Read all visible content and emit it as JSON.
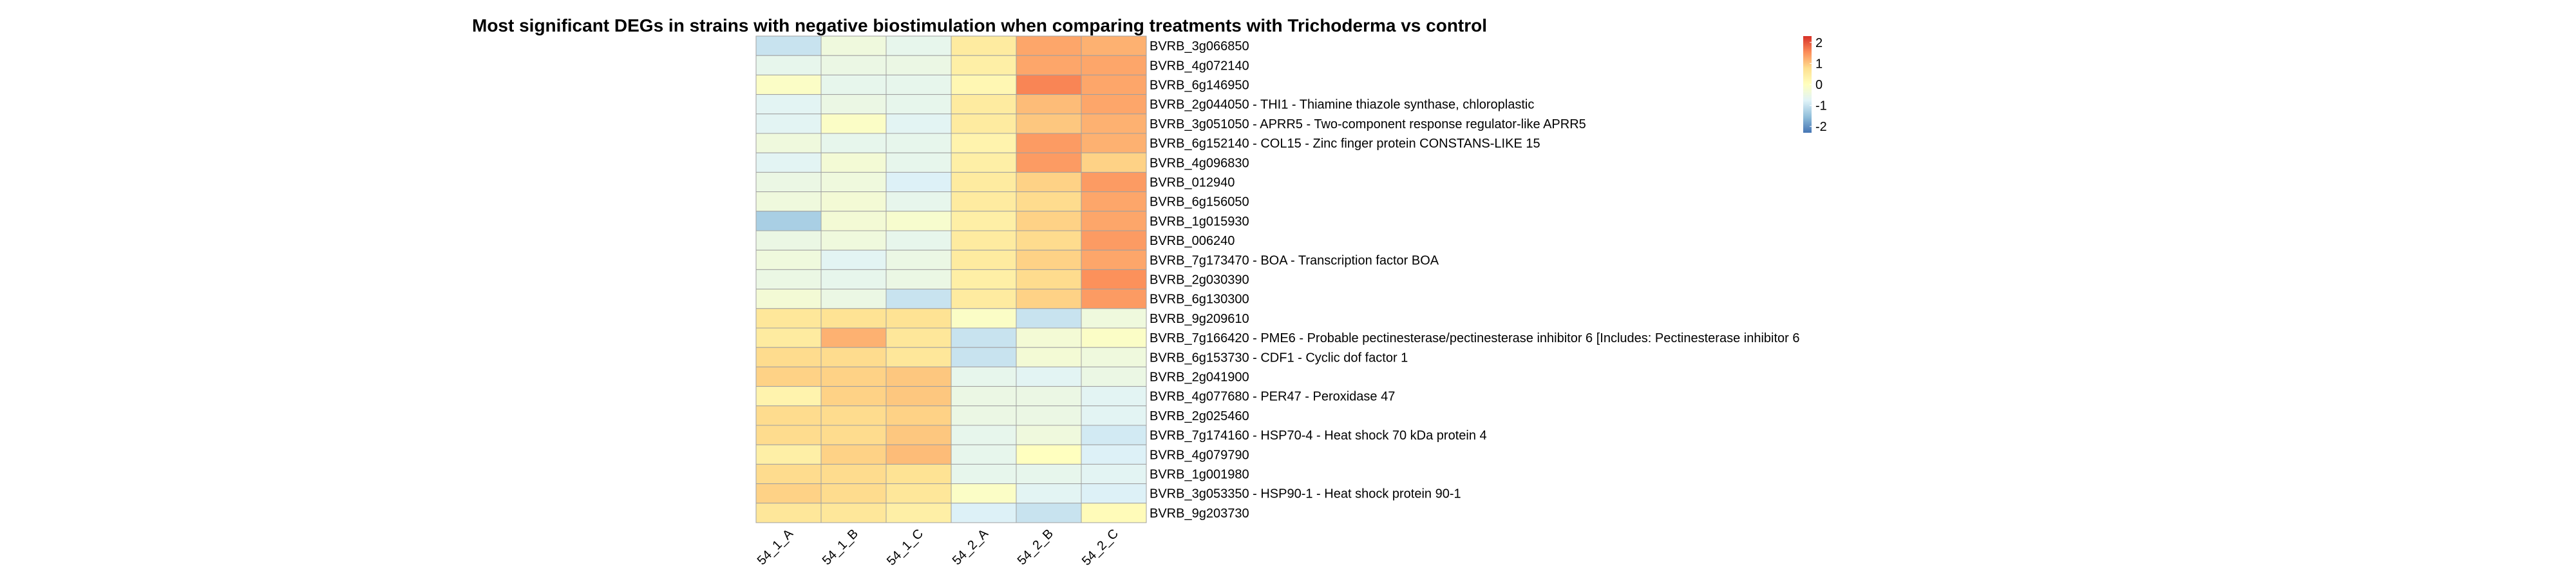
{
  "chart_data": {
    "type": "heatmap",
    "title": "Most significant DEGs in strains with negative biostimulation when comparing treatments with Trichoderma vs control",
    "columns": [
      "54_1_A",
      "54_1_B",
      "54_1_C",
      "54_2_A",
      "54_2_B",
      "54_2_C"
    ],
    "rows": [
      "BVRB_3g066850",
      "BVRB_4g072140",
      "BVRB_6g146950",
      "BVRB_2g044050 - THI1 - Thiamine thiazole synthase, chloroplastic",
      "BVRB_3g051050 - APRR5 - Two-component response regulator-like APRR5",
      "BVRB_6g152140 - COL15 - Zinc finger protein CONSTANS-LIKE 15",
      "BVRB_4g096830",
      "BVRB_012940",
      "BVRB_6g156050",
      "BVRB_1g015930",
      "BVRB_006240",
      "BVRB_7g173470 - BOA - Transcription factor BOA",
      "BVRB_2g030390",
      "BVRB_6g130300",
      "BVRB_9g209610",
      "BVRB_7g166420 - PME6 - Probable pectinesterase/pectinesterase inhibitor 6 [Includes: Pectinesterase inhibitor 6",
      "BVRB_6g153730 - CDF1 - Cyclic dof factor 1",
      "BVRB_2g041900",
      "BVRB_4g077680 - PER47 - Peroxidase 47",
      "BVRB_2g025460",
      "BVRB_7g174160 - HSP70-4 - Heat shock 70 kDa protein 4",
      "BVRB_4g079790",
      "BVRB_1g001980",
      "BVRB_3g053350 - HSP90-1 - Heat shock protein 90-1",
      "BVRB_9g203730"
    ],
    "values": [
      [
        -1.0,
        -0.4,
        -0.6,
        0.5,
        1.3,
        1.2
      ],
      [
        -0.6,
        -0.5,
        -0.5,
        0.4,
        1.3,
        1.3
      ],
      [
        -0.1,
        -0.6,
        -0.6,
        0.2,
        1.6,
        1.3
      ],
      [
        -0.7,
        -0.5,
        -0.6,
        0.5,
        1.1,
        1.3
      ],
      [
        -0.7,
        -0.1,
        -0.7,
        0.5,
        1.0,
        1.2
      ],
      [
        -0.4,
        -0.6,
        -0.6,
        0.3,
        1.4,
        1.2
      ],
      [
        -0.7,
        -0.3,
        -0.6,
        0.4,
        1.4,
        0.9
      ],
      [
        -0.5,
        -0.4,
        -0.8,
        0.5,
        0.9,
        1.4
      ],
      [
        -0.4,
        -0.3,
        -0.6,
        0.5,
        0.8,
        1.3
      ],
      [
        -1.3,
        -0.3,
        -0.2,
        0.4,
        0.9,
        1.3
      ],
      [
        -0.5,
        -0.4,
        -0.6,
        0.5,
        0.8,
        1.4
      ],
      [
        -0.4,
        -0.7,
        -0.5,
        0.5,
        0.9,
        1.3
      ],
      [
        -0.5,
        -0.6,
        -0.5,
        0.4,
        0.8,
        1.5
      ],
      [
        -0.3,
        -0.5,
        -1.0,
        0.5,
        0.9,
        1.4
      ],
      [
        0.6,
        0.7,
        0.7,
        -0.1,
        -1.0,
        -0.4
      ],
      [
        0.5,
        1.2,
        0.6,
        -1.0,
        -0.3,
        -0.1
      ],
      [
        0.8,
        0.8,
        0.6,
        -1.0,
        -0.3,
        -0.4
      ],
      [
        0.9,
        0.9,
        1.0,
        -0.6,
        -0.7,
        -0.5
      ],
      [
        0.3,
        0.9,
        1.0,
        -0.5,
        -0.5,
        -0.7
      ],
      [
        0.8,
        0.8,
        0.9,
        -0.5,
        -0.5,
        -0.7
      ],
      [
        0.8,
        0.8,
        1.0,
        -0.6,
        -0.4,
        -0.9
      ],
      [
        0.4,
        0.9,
        1.1,
        -0.6,
        0.0,
        -0.8
      ],
      [
        0.8,
        0.8,
        0.7,
        -0.6,
        -0.6,
        -0.7
      ],
      [
        0.9,
        0.8,
        0.6,
        -0.1,
        -0.7,
        -0.8
      ],
      [
        0.6,
        0.6,
        0.4,
        -0.8,
        -1.0,
        0.1
      ]
    ],
    "color_scale": {
      "min": -2.3,
      "max": 2.3,
      "ticks": [
        2,
        1,
        0,
        -1,
        -2
      ],
      "tick_labels": [
        "2",
        "1",
        "0",
        "-1",
        "-2"
      ],
      "colors": [
        "#4575b4",
        "#91bfdb",
        "#e0f3f8",
        "#ffffbf",
        "#fee090",
        "#fc8d59",
        "#d73027"
      ]
    },
    "legend_position": "top-right",
    "grid": true
  }
}
